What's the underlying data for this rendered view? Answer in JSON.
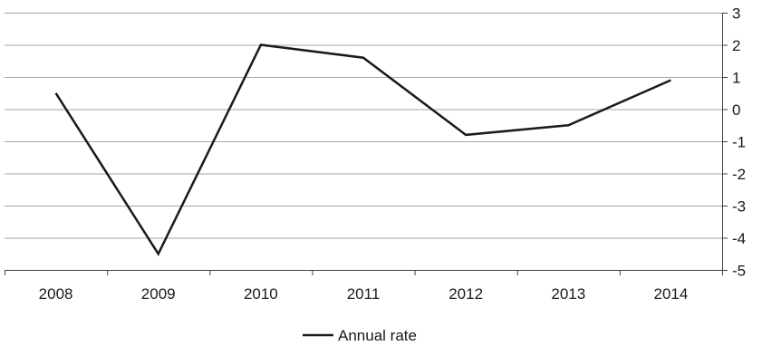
{
  "chart_data": {
    "type": "line",
    "title": "",
    "xlabel": "",
    "ylabel": "",
    "categories": [
      "2008",
      "2009",
      "2010",
      "2011",
      "2012",
      "2013",
      "2014"
    ],
    "series": [
      {
        "name": "Annual rate",
        "values": [
          0.5,
          -4.5,
          2.0,
          1.6,
          -0.8,
          -0.5,
          0.9
        ],
        "color": "#1a1a1a"
      }
    ],
    "ylim": [
      -5,
      3
    ],
    "yticks": [
      3,
      2,
      1,
      0,
      -1,
      -2,
      -3,
      -4,
      -5
    ],
    "ytick_labels": [
      "3",
      "2",
      "1",
      "0",
      "-1",
      "-2",
      "-3",
      "-4",
      "-5"
    ],
    "y_axis_side": "right",
    "grid": true,
    "legend_position": "bottom-center",
    "colors": {
      "line": "#1a1a1a",
      "grid": "#a6a6a6",
      "axis": "#404040"
    }
  }
}
